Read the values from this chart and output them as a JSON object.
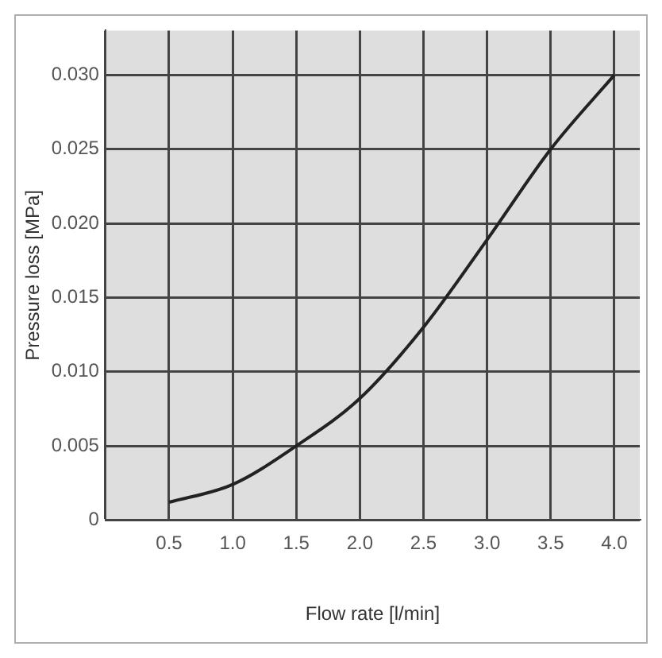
{
  "chart_data": {
    "type": "line",
    "xlabel": "Flow rate [l/min]",
    "ylabel": "Pressure loss [MPa]",
    "x": [
      0.5,
      1.0,
      1.5,
      2.0,
      2.5,
      3.0,
      3.5,
      4.0
    ],
    "series": [
      {
        "color": "#222222",
        "values": [
          0.0012,
          0.0024,
          0.005,
          0.0082,
          0.013,
          0.0189,
          0.025,
          0.03
        ]
      }
    ],
    "xlim": [
      0,
      4.2
    ],
    "xticks": [
      {
        "value": 0,
        "label": null
      },
      0.5,
      {
        "value": 1,
        "label": "1.0"
      },
      1.5,
      {
        "value": 2,
        "label": "2.0"
      },
      2.5,
      {
        "value": 3,
        "label": "3.0"
      },
      3.5,
      {
        "value": 4,
        "label": "4.0"
      }
    ],
    "ylim": [
      0,
      0.033
    ],
    "yticks": [
      0,
      0.005,
      {
        "value": 0.01,
        "label": "0.010"
      },
      0.015,
      {
        "value": 0.02,
        "label": "0.020"
      },
      0.025,
      {
        "value": 0.03,
        "label": "0.030"
      }
    ],
    "grid": true,
    "legend": false,
    "marker": "none",
    "line_style": "solid"
  }
}
